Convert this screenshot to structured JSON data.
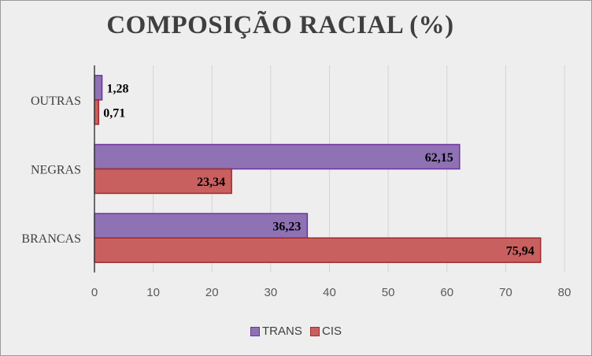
{
  "chart_data": {
    "type": "bar",
    "orientation": "horizontal",
    "title": "COMPOSIÇÃO RACIAL (%)",
    "categories": [
      "BRANCAS",
      "NEGRAS",
      "OUTRAS"
    ],
    "series": [
      {
        "name": "TRANS",
        "values": [
          36.23,
          62.15,
          1.28
        ],
        "labels": [
          "36,23",
          "62,15",
          "1,28"
        ],
        "color": "#8e72b4",
        "border": "#7030a0"
      },
      {
        "name": "CIS",
        "values": [
          75.94,
          23.34,
          0.71
        ],
        "labels": [
          "75,94",
          "23,34",
          "0,71"
        ],
        "color": "#c8605f",
        "border": "#a02b2b"
      }
    ],
    "xlim": [
      0,
      80
    ],
    "xticks": [
      "0",
      "10",
      "20",
      "30",
      "40",
      "50",
      "60",
      "70",
      "80"
    ],
    "grid": true,
    "legend_position": "bottom"
  }
}
